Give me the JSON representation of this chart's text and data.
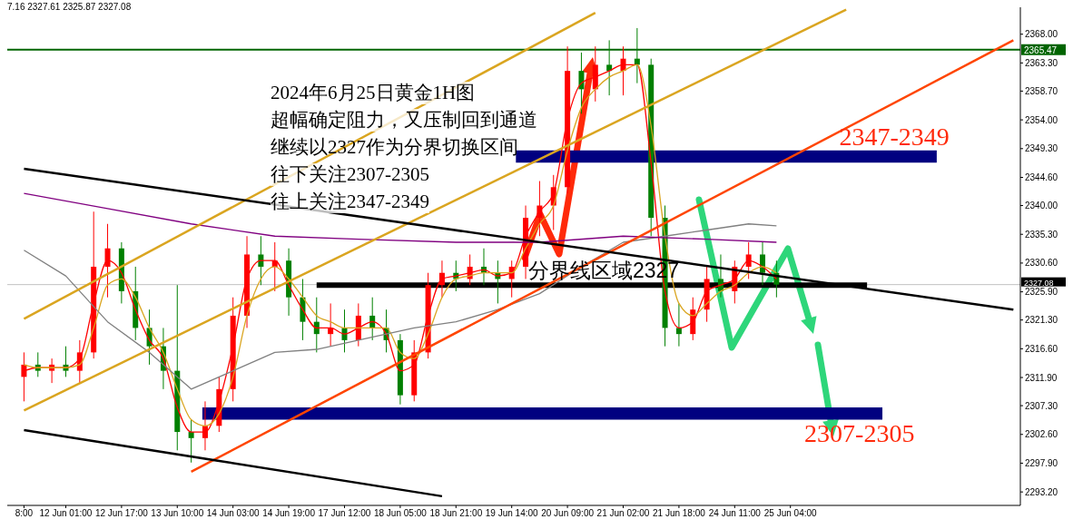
{
  "chart_data": {
    "type": "candlestick",
    "categories": [
      "8:00",
      null,
      null,
      "12 Jun 01:00",
      null,
      null,
      null,
      "12 Jun 17:00",
      null,
      null,
      null,
      "13 Jun 10:00",
      null,
      null,
      null,
      "14 Jun 03:00",
      null,
      null,
      null,
      "14 Jun 19:00",
      null,
      null,
      null,
      "17 Jun 12:00",
      null,
      null,
      null,
      "18 Jun 05:00",
      null,
      null,
      null,
      "18 Jun 21:00",
      null,
      null,
      null,
      "19 Jun 14:00",
      null,
      null,
      null,
      "20 Jun 09:00",
      null,
      null,
      null,
      "21 Jun 02:00",
      null,
      null,
      null,
      "21 Jun 18:00",
      null,
      null,
      null,
      "24 Jun 11:00",
      null,
      null,
      null,
      "25 Jun 04:00",
      null,
      null,
      null,
      null,
      null,
      null,
      null,
      null,
      null,
      null,
      null,
      null,
      null,
      null,
      null,
      null
    ],
    "ohlc": [
      [
        2312,
        2316,
        2308,
        2314
      ],
      [
        2314,
        2316,
        2312,
        2313
      ],
      [
        2313,
        2315,
        2311,
        2314
      ],
      [
        2314,
        2317,
        2312,
        2313
      ],
      [
        2313,
        2318,
        2311,
        2316
      ],
      [
        2316,
        2339,
        2315,
        2330
      ],
      [
        2330,
        2337,
        2325,
        2333
      ],
      [
        2333,
        2334,
        2324,
        2326
      ],
      [
        2326,
        2330,
        2318,
        2320
      ],
      [
        2320,
        2323,
        2314,
        2317
      ],
      [
        2317,
        2320,
        2310,
        2313
      ],
      [
        2313,
        2327,
        2300,
        2303
      ],
      [
        2303,
        2305,
        2298,
        2302
      ],
      [
        2302,
        2308,
        2300,
        2304
      ],
      [
        2304,
        2312,
        2303,
        2310
      ],
      [
        2310,
        2325,
        2308,
        2322
      ],
      [
        2322,
        2335,
        2320,
        2332
      ],
      [
        2332,
        2335,
        2327,
        2330
      ],
      [
        2330,
        2334,
        2326,
        2331
      ],
      [
        2331,
        2333,
        2322,
        2325
      ],
      [
        2325,
        2328,
        2318,
        2321
      ],
      [
        2321,
        2325,
        2316,
        2319
      ],
      [
        2319,
        2324,
        2317,
        2320
      ],
      [
        2320,
        2323,
        2316,
        2318
      ],
      [
        2318,
        2324,
        2317,
        2322
      ],
      [
        2322,
        2325,
        2318,
        2320
      ],
      [
        2320,
        2323,
        2316,
        2318
      ],
      [
        2318,
        2319,
        2307.5,
        2309
      ],
      [
        2309,
        2318,
        2308,
        2316
      ],
      [
        2316,
        2329,
        2315,
        2327
      ],
      [
        2327,
        2331,
        2325,
        2329
      ],
      [
        2329,
        2331,
        2326,
        2328
      ],
      [
        2328,
        2332,
        2327,
        2330
      ],
      [
        2330,
        2333,
        2327,
        2329
      ],
      [
        2329,
        2331,
        2324,
        2328
      ],
      [
        2328,
        2331,
        2325,
        2330
      ],
      [
        2330,
        2340,
        2328,
        2338
      ],
      [
        2338,
        2344,
        2335,
        2340
      ],
      [
        2340,
        2345,
        2336,
        2343
      ],
      [
        2343,
        2366,
        2342,
        2362
      ],
      [
        2362,
        2365,
        2355,
        2359
      ],
      [
        2359,
        2366,
        2357,
        2363
      ],
      [
        2363,
        2367,
        2358,
        2362
      ],
      [
        2362,
        2366,
        2358,
        2364
      ],
      [
        2364,
        2369,
        2360,
        2363
      ],
      [
        2363,
        2364,
        2335,
        2338
      ],
      [
        2338,
        2340,
        2317,
        2320
      ],
      [
        2320,
        2324,
        2317,
        2319
      ],
      [
        2319,
        2325,
        2318,
        2323
      ],
      [
        2323,
        2330,
        2321,
        2328
      ],
      [
        2328,
        2332,
        2325,
        2326
      ],
      [
        2326,
        2331,
        2324,
        2330
      ],
      [
        2330,
        2334,
        2328,
        2332
      ],
      [
        2332,
        2334,
        2327,
        2329
      ],
      [
        2329,
        2331,
        2325,
        2327.08
      ],
      null,
      null,
      null,
      null,
      null,
      null,
      null,
      null,
      null,
      null,
      null,
      null,
      null,
      null,
      null,
      null,
      null
    ],
    "colors": [
      "#ff0000",
      "#008000",
      "#ff0000",
      "#008000",
      "#ff0000",
      "#ff0000",
      "#ff0000",
      "#008000",
      "#008000",
      "#008000",
      "#008000",
      "#008000",
      "#008000",
      "#ff0000",
      "#ff0000",
      "#ff0000",
      "#ff0000",
      "#008000",
      "#ff0000",
      "#008000",
      "#008000",
      "#008000",
      "#ff0000",
      "#008000",
      "#ff0000",
      "#008000",
      "#008000",
      "#008000",
      "#ff0000",
      "#ff0000",
      "#ff0000",
      "#008000",
      "#ff0000",
      "#008000",
      "#008000",
      "#ff0000",
      "#ff0000",
      "#ff0000",
      "#ff0000",
      "#ff0000",
      "#008000",
      "#ff0000",
      "#008000",
      "#ff0000",
      "#008000",
      "#008000",
      "#008000",
      "#008000",
      "#ff0000",
      "#ff0000",
      "#008000",
      "#ff0000",
      "#ff0000",
      "#008000",
      "#008000",
      null,
      null,
      null,
      null,
      null,
      null,
      null,
      null,
      null,
      null,
      null,
      null,
      null,
      null,
      null,
      null,
      null
    ],
    "series": [
      {
        "type": "line",
        "color": "#ff0000",
        "values": [
          2313,
          2313.5,
          2313.5,
          2313.5,
          2315,
          2324,
          2331,
          2329,
          2323,
          2318,
          2315,
          2307,
          2303,
          2303,
          2308,
          2317,
          2328,
          2331,
          2331,
          2327,
          2323,
          2320,
          2320,
          2319,
          2320,
          2321,
          2319,
          2313,
          2314,
          2322,
          2328,
          2328.5,
          2329,
          2329.5,
          2328.5,
          2329,
          2335,
          2339,
          2342,
          2354,
          2360,
          2361,
          2362,
          2363,
          2363,
          2347,
          2326,
          2320,
          2321,
          2326,
          2327,
          2328,
          2331,
          2330,
          2328,
          null,
          null,
          null,
          null,
          null,
          null,
          null,
          null,
          null,
          null,
          null,
          null,
          null,
          null,
          null,
          null,
          null
        ]
      },
      {
        "type": "line",
        "color": "#daa520",
        "values": [
          2314,
          2313.5,
          2313.5,
          2313.5,
          2314,
          2320,
          2327,
          2328,
          2325,
          2320,
          2316,
          2310,
          2305,
          2304,
          2306,
          2312,
          2322,
          2328,
          2330,
          2328,
          2325,
          2322,
          2321,
          2320,
          2320,
          2320,
          2320,
          2316,
          2315,
          2319,
          2325,
          2328,
          2328.5,
          2329,
          2329,
          2329,
          2333,
          2337,
          2340,
          2349,
          2356,
          2359,
          2361,
          2362,
          2363,
          2353,
          2335,
          2324,
          2322,
          2324,
          2326,
          2327,
          2329,
          2330,
          2329,
          null,
          null,
          null,
          null,
          null,
          null,
          null,
          null,
          null,
          null,
          null,
          null,
          null,
          null,
          null,
          null,
          null
        ]
      },
      {
        "type": "line",
        "color": "#808080",
        "values": [
          2332.7,
          null,
          null,
          2328.5,
          null,
          null,
          2321,
          null,
          null,
          2316,
          null,
          null,
          2310,
          null,
          null,
          2313,
          null,
          null,
          2316,
          null,
          null,
          2316.5,
          null,
          null,
          2318,
          null,
          null,
          null,
          2320,
          null,
          null,
          2321,
          null,
          null,
          2323,
          null,
          null,
          2325.6,
          null,
          null,
          2330,
          null,
          null,
          2334,
          null,
          null,
          2335,
          null,
          null,
          2336,
          null,
          null,
          2337,
          null,
          2336.7,
          null,
          null,
          null,
          null,
          null,
          null,
          null,
          null,
          null,
          null,
          null,
          null,
          null,
          null,
          null,
          null,
          null
        ]
      },
      {
        "type": "line",
        "color": "#800080",
        "values": [
          2342,
          null,
          null,
          null,
          null,
          null,
          2339.5,
          null,
          null,
          null,
          null,
          null,
          2337,
          null,
          null,
          null,
          null,
          null,
          2335,
          null,
          null,
          null,
          null,
          null,
          2334.5,
          null,
          null,
          null,
          null,
          null,
          null,
          2334,
          null,
          null,
          null,
          null,
          null,
          2334,
          null,
          null,
          null,
          null,
          null,
          2335,
          null,
          null,
          null,
          null,
          null,
          2334.5,
          null,
          null,
          null,
          null,
          2334,
          null,
          null,
          null,
          null,
          null,
          null,
          null,
          null,
          null,
          null,
          null,
          null,
          null,
          null,
          null,
          null,
          null
        ]
      },
      {
        "type": "line",
        "color": "#ff4500",
        "values": [
          null,
          null,
          null,
          null,
          null,
          null,
          null,
          null,
          null,
          null,
          null,
          null,
          2296.5,
          null,
          null,
          null,
          null,
          null,
          null,
          null,
          null,
          null,
          null,
          null,
          null,
          null,
          null,
          null,
          null,
          null,
          null,
          null,
          null,
          null,
          null,
          null,
          null,
          null,
          null,
          null,
          null,
          null,
          null,
          null,
          null,
          null,
          null,
          null,
          null,
          null,
          null,
          null,
          null,
          null,
          null,
          null,
          null,
          null,
          null,
          null,
          null,
          null,
          null,
          null,
          null,
          null,
          null,
          null,
          null,
          null,
          null,
          2367
        ]
      },
      {
        "type": "line",
        "color": "#daa520",
        "values": [
          2321.5,
          null,
          null,
          null,
          null,
          null,
          null,
          null,
          null,
          null,
          null,
          null,
          null,
          null,
          null,
          null,
          null,
          null,
          null,
          null,
          null,
          null,
          null,
          null,
          null,
          null,
          null,
          null,
          null,
          null,
          null,
          null,
          null,
          null,
          null,
          null,
          null,
          null,
          null,
          null,
          null,
          2371.5,
          null,
          null,
          null,
          null,
          null,
          null,
          null,
          null,
          null,
          null,
          null,
          null,
          null,
          null,
          null,
          null,
          null,
          null,
          null,
          null,
          null,
          null,
          null,
          null,
          null,
          null,
          null,
          null,
          null,
          null
        ]
      },
      {
        "type": "line",
        "color": "#daa520",
        "values": [
          2306.5,
          null,
          null,
          null,
          null,
          null,
          null,
          null,
          null,
          null,
          null,
          null,
          null,
          null,
          null,
          null,
          null,
          null,
          null,
          null,
          null,
          null,
          null,
          null,
          null,
          null,
          null,
          null,
          null,
          null,
          null,
          null,
          null,
          null,
          null,
          null,
          null,
          null,
          null,
          null,
          null,
          null,
          null,
          null,
          null,
          null,
          null,
          null,
          null,
          null,
          null,
          null,
          null,
          null,
          null,
          null,
          null,
          null,
          null,
          2372,
          null,
          null,
          null,
          null,
          null,
          null,
          null,
          null,
          null,
          null,
          null,
          null
        ]
      },
      {
        "type": "line",
        "color": "#000000",
        "values": [
          2346,
          null,
          null,
          null,
          null,
          null,
          null,
          null,
          null,
          null,
          null,
          null,
          null,
          null,
          null,
          null,
          null,
          null,
          null,
          null,
          null,
          null,
          null,
          null,
          null,
          null,
          null,
          null,
          null,
          null,
          null,
          null,
          null,
          null,
          null,
          null,
          null,
          null,
          null,
          null,
          null,
          null,
          null,
          null,
          null,
          null,
          null,
          null,
          null,
          null,
          null,
          null,
          null,
          null,
          null,
          null,
          null,
          null,
          null,
          null,
          null,
          null,
          null,
          null,
          null,
          null,
          null,
          null,
          null,
          null,
          null,
          2323
        ]
      },
      {
        "type": "line",
        "color": "#000000",
        "values": [
          2303.3,
          null,
          null,
          null,
          null,
          null,
          null,
          null,
          null,
          null,
          null,
          null,
          null,
          null,
          null,
          null,
          null,
          null,
          null,
          null,
          null,
          null,
          null,
          null,
          null,
          null,
          null,
          null,
          null,
          null,
          2292.5,
          null,
          null,
          null,
          null,
          null,
          null,
          null,
          null,
          null,
          null,
          null,
          null,
          null,
          null,
          null,
          null,
          null,
          null,
          null,
          null,
          null,
          null,
          null,
          null,
          null,
          null,
          null,
          null,
          null,
          null,
          null,
          null,
          null,
          null,
          null,
          null,
          null,
          null,
          null,
          null,
          null
        ]
      }
    ],
    "ylim": [
      2291,
      2372.4
    ],
    "yticks": [
      {
        "value": 2293.2,
        "label": "2293.20"
      },
      {
        "value": 2297.9,
        "label": "2297.90"
      },
      {
        "value": 2302.6,
        "label": "2302.60"
      },
      {
        "value": 2307.3,
        "label": "2307.30"
      },
      {
        "value": 2311.9,
        "label": "2311.90"
      },
      {
        "value": 2316.6,
        "label": "2316.60"
      },
      {
        "value": 2321.3,
        "label": "2321.30"
      },
      {
        "value": 2325.9,
        "label": "2325.90"
      },
      {
        "value": 2330.6,
        "label": "2330.60"
      },
      {
        "value": 2335.3,
        "label": "2335.30"
      },
      {
        "value": 2340,
        "label": "2340.00"
      },
      {
        "value": 2344.6,
        "label": "2344.60"
      },
      {
        "value": 2349.3,
        "label": "2349.30"
      },
      {
        "value": 2354,
        "label": "2354.00"
      },
      {
        "value": 2358.7,
        "label": "2358.70"
      },
      {
        "value": 2363.3,
        "label": "2363.30"
      },
      {
        "value": 2368,
        "label": "2368.00"
      }
    ],
    "ref_lines": [
      {
        "axis": "y",
        "value": 2365.47,
        "label": "2365.47",
        "color": "#006400"
      },
      {
        "axis": "y",
        "value": 2327.08,
        "label": "2327.08",
        "color": "#c0c0c0"
      },
      {
        "axis": "y",
        "value": 2327,
        "label": "分界线区域2327",
        "color": "#000000"
      }
    ],
    "bands": [
      {
        "axis": "y",
        "from": 2347,
        "to": 2349,
        "label": "2347-2349",
        "color": "#000080"
      },
      {
        "axis": "y",
        "from": 2305,
        "to": 2307,
        "label": "2307-2305",
        "color": "#000080"
      }
    ],
    "annotations": [
      "7.16 2327.61 2325.87 2327.08",
      "2024年6月25日黄金1H图",
      "超幅确定阻力，又压制回到通道",
      "继续以2327作为分界切换区间",
      "往下关注2307-2305",
      "往上关注2347-2349"
    ]
  }
}
